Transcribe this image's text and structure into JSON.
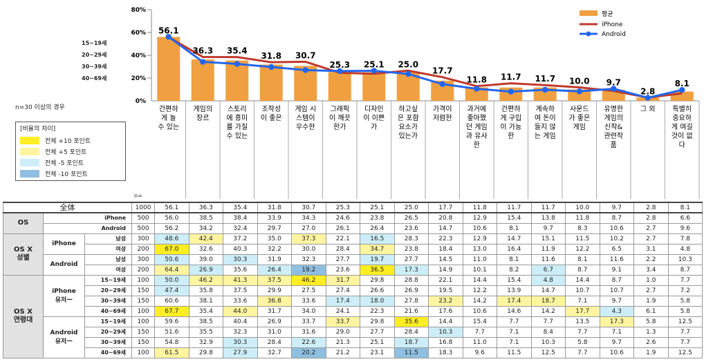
{
  "chart_data": {
    "type": "bar",
    "title": "",
    "ylim": [
      0,
      80
    ],
    "yticks": [
      "0%",
      "20%",
      "40%",
      "60%",
      "80%"
    ],
    "categories": [
      [
        "간편하",
        "게 놀",
        "수 있는"
      ],
      [
        "게임의",
        "장르"
      ],
      [
        "스토리",
        "에 흥미",
        "를 가질",
        "수 있는"
      ],
      [
        "조작성",
        "이 좋은"
      ],
      [
        "게임 시",
        "스템이",
        "우수한"
      ],
      [
        "그래픽",
        "이 깨끗",
        "한가"
      ],
      [
        "디자인",
        "이 이쁜",
        "가"
      ],
      [
        "하고싶",
        "은 포함",
        "요소가",
        "있는가"
      ],
      [
        "가격이",
        "저렴한"
      ],
      [
        "과거에",
        "좋아했",
        "던 게임",
        "과 유사",
        "한"
      ],
      [
        "간편하",
        "게 구입",
        "이 가능",
        "한"
      ],
      [
        "계속하",
        "여 돈이",
        "들지 않",
        "는 게임"
      ],
      [
        "사운드",
        "가 좋은",
        "게임"
      ],
      [
        "유명한",
        "게임의",
        "신작&",
        "관련작",
        "품"
      ],
      [
        "그 외"
      ],
      [
        "특별히",
        "중요하",
        "게 여길",
        "것이 없",
        "다"
      ]
    ],
    "series": [
      {
        "name": "평균",
        "type": "bar",
        "color": "#f0a040",
        "values": [
          56.1,
          36.3,
          35.4,
          31.8,
          30.7,
          25.3,
          25.1,
          25.0,
          17.7,
          11.8,
          11.7,
          11.7,
          10.0,
          9.7,
          2.8,
          8.1
        ]
      },
      {
        "name": "iPhone",
        "type": "line",
        "color": "#c0392b",
        "values": [
          56.0,
          38.5,
          38.4,
          33.9,
          34.3,
          24.6,
          23.8,
          26.5,
          20.8,
          12.9,
          15.4,
          13.8,
          11.8,
          8.7,
          2.8,
          6.6
        ]
      },
      {
        "name": "Android",
        "type": "line",
        "color": "#2266ee",
        "values": [
          56.2,
          34.2,
          32.4,
          29.7,
          27.0,
          26.1,
          26.4,
          23.6,
          14.7,
          10.6,
          8.1,
          9.7,
          8.3,
          10.6,
          2.7,
          9.6
        ]
      }
    ]
  },
  "side_labels": [
    "15~19세",
    "20~29세",
    "30~39세",
    "40~69세"
  ],
  "note": "n=30 이상의 경우",
  "n_label": "n=",
  "legend_box": {
    "title": "[비율의 차이]",
    "items": [
      {
        "label": "전체 +10 포인트",
        "color": "#ffee22"
      },
      {
        "label": "전체 +5 포인트",
        "color": "#fff5a0"
      },
      {
        "label": "전체 -5 포인트",
        "color": "#cdeef8"
      },
      {
        "label": "전체 -10 포인트",
        "color": "#8fbfe0"
      }
    ]
  },
  "table": {
    "total": {
      "label": "全体",
      "n": "1000",
      "values": [
        "56.1",
        "36.3",
        "35.4",
        "31.8",
        "30.7",
        "25.3",
        "25.1",
        "25.0",
        "17.7",
        "11.8",
        "11.7",
        "11.7",
        "10.0",
        "9.7",
        "2.8",
        "8.1"
      ]
    },
    "groups": [
      {
        "label": "OS",
        "rows": [
          {
            "sub": "",
            "leaf": "iPhone",
            "n": "500",
            "values": [
              "56.0",
              "38.5",
              "38.4",
              "33.9",
              "34.3",
              "24.6",
              "23.8",
              "26.5",
              "20.8",
              "12.9",
              "15.4",
              "13.8",
              "11.8",
              "8.7",
              "2.8",
              "6.6"
            ],
            "hl": {}
          },
          {
            "sub": "",
            "leaf": "Android",
            "n": "500",
            "values": [
              "56.2",
              "34.2",
              "32.4",
              "29.7",
              "27.0",
              "26.1",
              "26.4",
              "23.6",
              "14.7",
              "10.6",
              "8.1",
              "9.7",
              "8.3",
              "10.6",
              "2.7",
              "9.6"
            ],
            "hl": {}
          }
        ]
      },
      {
        "label": "OS X 성별",
        "rows": [
          {
            "sub": "iPhone",
            "leaf": "남성",
            "n": "300",
            "values": [
              "48.6",
              "42.4",
              "37.2",
              "35.0",
              "37.3",
              "22.1",
              "16.5",
              "28.3",
              "22.3",
              "12.9",
              "14.7",
              "15.1",
              "11.5",
              "10.2",
              "2.7",
              "7.8"
            ],
            "hl": {
              "0": "m5",
              "1": "p5",
              "4": "p5",
              "6": "m5"
            }
          },
          {
            "sub": "iPhone",
            "leaf": "여성",
            "n": "200",
            "values": [
              "67.0",
              "32.6",
              "40.3",
              "32.2",
              "30.0",
              "28.4",
              "34.7",
              "23.8",
              "18.4",
              "13.0",
              "16.4",
              "11.9",
              "12.2",
              "6.5",
              "3.1",
              "4.8"
            ],
            "hl": {
              "0": "p10",
              "6": "p5"
            }
          },
          {
            "sub": "Android",
            "leaf": "남성",
            "n": "300",
            "values": [
              "50.6",
              "39.0",
              "30.3",
              "31.9",
              "32.3",
              "27.7",
              "19.7",
              "27.7",
              "14.5",
              "11.0",
              "8.1",
              "11.6",
              "8.1",
              "11.6",
              "2.2",
              "10.3"
            ],
            "hl": {
              "0": "m5",
              "2": "m5",
              "6": "m5"
            }
          },
          {
            "sub": "Android",
            "leaf": "여성",
            "n": "200",
            "values": [
              "64.4",
              "26.9",
              "35.6",
              "26.4",
              "19.2",
              "23.6",
              "36.5",
              "17.3",
              "14.9",
              "10.1",
              "8.2",
              "6.7",
              "8.7",
              "9.1",
              "3.4",
              "8.7"
            ],
            "hl": {
              "0": "p5",
              "1": "m5",
              "3": "m5",
              "4": "m10",
              "6": "p10",
              "7": "m5",
              "11": "m5"
            }
          }
        ]
      },
      {
        "label": "OS X 연령대",
        "rows": [
          {
            "sub": "iPhone 유저ー",
            "leaf": "15~19세",
            "n": "100",
            "values": [
              "50.0",
              "46.2",
              "41.3",
              "37.5",
              "46.2",
              "31.7",
              "29.8",
              "28.8",
              "22.1",
              "14.4",
              "15.4",
              "4.8",
              "14.4",
              "8.7",
              "1.0",
              "7.7"
            ],
            "hl": {
              "0": "m5",
              "1": "p5",
              "2": "p5",
              "3": "p5",
              "4": "p10",
              "5": "p5",
              "11": "m5"
            }
          },
          {
            "sub": "iPhone 유저ー",
            "leaf": "20~29세",
            "n": "150",
            "values": [
              "47.4",
              "35.8",
              "37.5",
              "29.9",
              "27.5",
              "27.4",
              "26.6",
              "26.9",
              "19.5",
              "12.2",
              "13.9",
              "14.7",
              "10.7",
              "10.7",
              "2.7",
              "7.2"
            ],
            "hl": {
              "0": "m5"
            }
          },
          {
            "sub": "iPhone 유저ー",
            "leaf": "30~39세",
            "n": "150",
            "values": [
              "60.6",
              "38.1",
              "33.6",
              "36.8",
              "33.6",
              "17.4",
              "18.0",
              "27.8",
              "23.2",
              "14.2",
              "17.4",
              "18.7",
              "7.1",
              "9.7",
              "1.9",
              "5.8"
            ],
            "hl": {
              "3": "p5",
              "5": "m5",
              "6": "m5",
              "8": "p5",
              "10": "p5",
              "11": "p5"
            }
          },
          {
            "sub": "iPhone 유저ー",
            "leaf": "40~69세",
            "n": "100",
            "values": [
              "67.7",
              "35.4",
              "44.0",
              "31.7",
              "34.0",
              "24.1",
              "22.3",
              "21.6",
              "17.6",
              "10.6",
              "14.6",
              "14.2",
              "17.7",
              "4.3",
              "6.1",
              "5.8"
            ],
            "hl": {
              "0": "p10",
              "2": "p5",
              "12": "p5",
              "13": "m5"
            }
          },
          {
            "sub": "Android 유저ー",
            "leaf": "15~19세",
            "n": "100",
            "values": [
              "59.6",
              "38.5",
              "40.4",
              "26.9",
              "33.7",
              "33.7",
              "29.8",
              "35.6",
              "14.4",
              "15.4",
              "7.7",
              "7.7",
              "13.5",
              "17.3",
              "5.8",
              "12.5"
            ],
            "hl": {
              "5": "p5",
              "7": "p10",
              "13": "p5"
            }
          },
          {
            "sub": "Android 유저ー",
            "leaf": "20~29세",
            "n": "150",
            "values": [
              "51.6",
              "35.5",
              "32.3",
              "31.0",
              "31.6",
              "29.0",
              "27.7",
              "28.4",
              "10.3",
              "7.7",
              "7.1",
              "8.4",
              "7.7",
              "7.1",
              "1.3",
              "7.7"
            ],
            "hl": {
              "8": "m5"
            }
          },
          {
            "sub": "Android 유저ー",
            "leaf": "30~39세",
            "n": "150",
            "values": [
              "54.8",
              "32.9",
              "30.3",
              "28.4",
              "22.6",
              "21.3",
              "25.1",
              "18.7",
              "16.8",
              "11.0",
              "7.1",
              "10.3",
              "5.8",
              "9.7",
              "2.6",
              "7.7"
            ],
            "hl": {
              "2": "m5",
              "4": "m5",
              "7": "m5"
            }
          },
          {
            "sub": "Android 유저ー",
            "leaf": "40~69세",
            "n": "100",
            "values": [
              "61.5",
              "29.8",
              "27.9",
              "32.7",
              "20.2",
              "21.2",
              "23.1",
              "11.5",
              "18.3",
              "9.6",
              "11.5",
              "12.5",
              "7.7",
              "10.6",
              "1.9",
              "12.5"
            ],
            "hl": {
              "0": "p5",
              "2": "m5",
              "4": "m10",
              "7": "m10"
            }
          }
        ]
      }
    ]
  }
}
